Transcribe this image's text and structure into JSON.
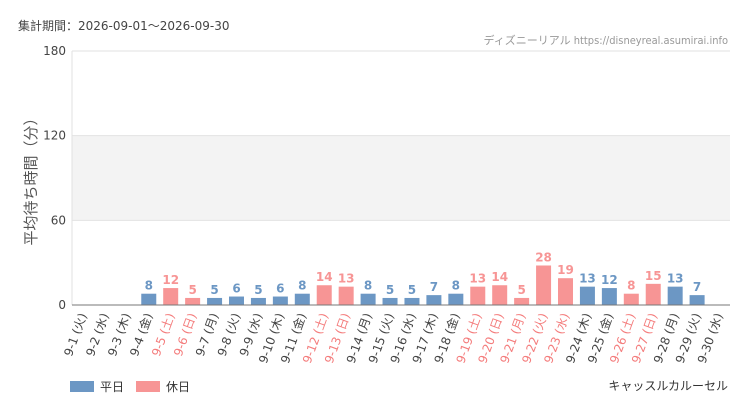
{
  "header": {
    "period_label": "集計期間：2026-09-01〜2026-09-30",
    "source": "ディズニーリアル https://disneyreal.asumirai.info"
  },
  "legend": {
    "weekday_label": "平日",
    "holiday_label": "休日"
  },
  "attraction_name": "キャッスルカルーセル",
  "colors": {
    "weekday": "#6c97c4",
    "holiday": "#f79595",
    "band": "#f3f3f3",
    "axis_text": "#444444"
  },
  "chart_data": {
    "type": "bar",
    "ylabel": "平均待ち時間（分）",
    "ylim": [
      0,
      180
    ],
    "yticks": [
      0,
      60,
      120,
      180
    ],
    "grid": true,
    "legend_position": "bottom-left",
    "categories": [
      "9-1 (火)",
      "9-2 (水)",
      "9-3 (木)",
      "9-4 (金)",
      "9-5 (土)",
      "9-6 (日)",
      "9-7 (月)",
      "9-8 (火)",
      "9-9 (水)",
      "9-10 (木)",
      "9-11 (金)",
      "9-12 (土)",
      "9-13 (日)",
      "9-14 (月)",
      "9-15 (火)",
      "9-16 (水)",
      "9-17 (木)",
      "9-18 (金)",
      "9-19 (土)",
      "9-20 (日)",
      "9-21 (月)",
      "9-22 (火)",
      "9-23 (水)",
      "9-24 (木)",
      "9-25 (金)",
      "9-26 (土)",
      "9-27 (日)",
      "9-28 (月)",
      "9-29 (火)",
      "9-30 (水)"
    ],
    "values": [
      null,
      null,
      null,
      8,
      12,
      5,
      5,
      6,
      5,
      6,
      8,
      14,
      13,
      8,
      5,
      5,
      7,
      8,
      13,
      14,
      5,
      28,
      19,
      13,
      12,
      8,
      15,
      13,
      7,
      null
    ],
    "day_type": [
      "weekday",
      "weekday",
      "weekday",
      "weekday",
      "holiday",
      "holiday",
      "weekday",
      "weekday",
      "weekday",
      "weekday",
      "weekday",
      "holiday",
      "holiday",
      "weekday",
      "weekday",
      "weekday",
      "weekday",
      "weekday",
      "holiday",
      "holiday",
      "holiday",
      "holiday",
      "holiday",
      "weekday",
      "weekday",
      "holiday",
      "holiday",
      "weekday",
      "weekday",
      "weekday"
    ]
  }
}
